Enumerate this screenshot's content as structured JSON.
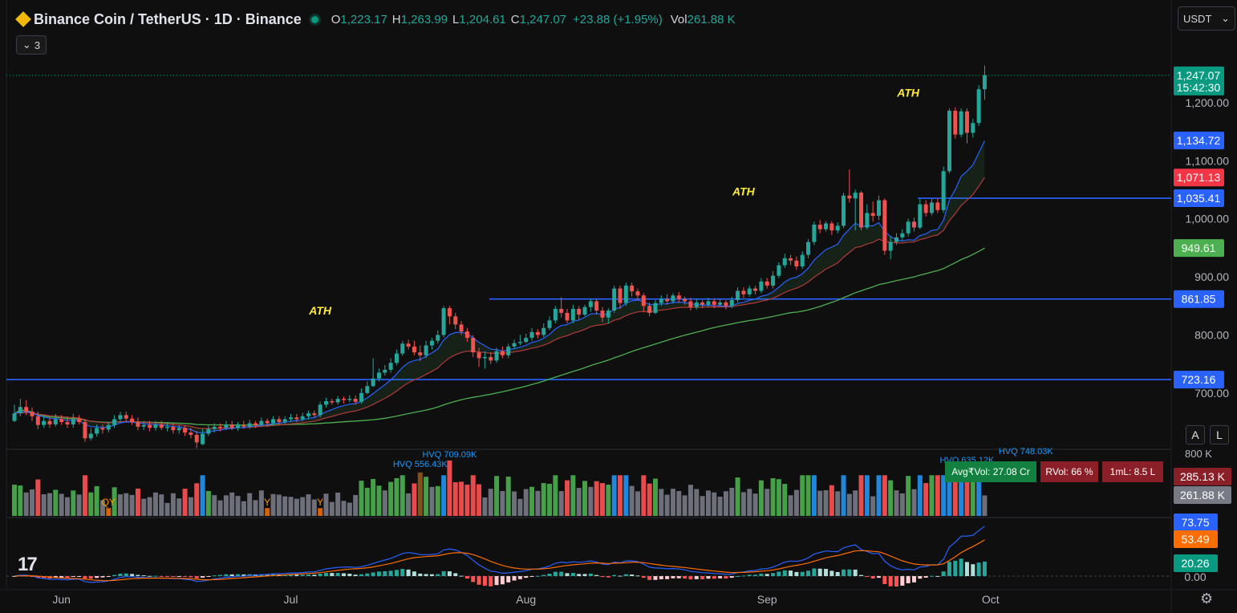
{
  "header": {
    "symbol": "Binance Coin / TetherUS · 1D · Binance",
    "o_label": "O",
    "o_value": "1,223.17",
    "h_label": "H",
    "h_value": "1,263.99",
    "l_label": "L",
    "l_value": "1,204.61",
    "c_label": "C",
    "c_value": "1,247.07",
    "change": "+23.88 (+1.95%)",
    "vol_label": "Vol",
    "vol_value": "261.88 K",
    "indicators_count": "3"
  },
  "currency": "USDT",
  "scale_buttons": {
    "auto": "A",
    "log": "L"
  },
  "colors": {
    "up": "#26a69a",
    "down": "#ef5350",
    "ema_fast": "#2962ff",
    "ema_slow": "#b23a3a",
    "ma": "#4caf50",
    "hline": "#2962ff",
    "vol_up": "#4caf50",
    "vol_down": "#ff5252",
    "vol_blue": "#2196f3",
    "vol_grey": "#787b86",
    "vol_hvq": "#8d5a1c",
    "macd": "#2962ff",
    "signal": "#ff6d00"
  },
  "chart_data": {
    "type": "candlestick",
    "interval": "1D",
    "ylim": [
      610,
      1280
    ],
    "y_ticks": [
      "1,200.00",
      "1,100.00",
      "1,000.00",
      "900.00",
      "800.00",
      "700.00"
    ],
    "x_ticks": [
      "Jun",
      "Jul",
      "Aug",
      "Sep",
      "Oct"
    ],
    "candles": [
      {
        "o": 652,
        "c": 665,
        "h": 680,
        "l": 650
      },
      {
        "o": 665,
        "c": 676,
        "h": 690,
        "l": 660
      },
      {
        "o": 676,
        "c": 668,
        "h": 688,
        "l": 662
      },
      {
        "o": 668,
        "c": 660,
        "h": 675,
        "l": 652
      },
      {
        "o": 660,
        "c": 645,
        "h": 668,
        "l": 638
      },
      {
        "o": 645,
        "c": 652,
        "h": 660,
        "l": 640
      },
      {
        "o": 652,
        "c": 646,
        "h": 658,
        "l": 640
      },
      {
        "o": 646,
        "c": 655,
        "h": 664,
        "l": 642
      },
      {
        "o": 655,
        "c": 650,
        "h": 662,
        "l": 645
      },
      {
        "o": 650,
        "c": 646,
        "h": 660,
        "l": 640
      },
      {
        "o": 646,
        "c": 655,
        "h": 664,
        "l": 640
      },
      {
        "o": 655,
        "c": 650,
        "h": 662,
        "l": 646
      },
      {
        "o": 650,
        "c": 622,
        "h": 656,
        "l": 616
      },
      {
        "o": 622,
        "c": 630,
        "h": 640,
        "l": 618
      },
      {
        "o": 630,
        "c": 640,
        "h": 646,
        "l": 625
      },
      {
        "o": 640,
        "c": 637,
        "h": 646,
        "l": 630
      },
      {
        "o": 637,
        "c": 645,
        "h": 650,
        "l": 632
      },
      {
        "o": 645,
        "c": 655,
        "h": 662,
        "l": 640
      },
      {
        "o": 655,
        "c": 662,
        "h": 668,
        "l": 650
      },
      {
        "o": 662,
        "c": 656,
        "h": 668,
        "l": 650
      },
      {
        "o": 656,
        "c": 650,
        "h": 662,
        "l": 645
      },
      {
        "o": 650,
        "c": 642,
        "h": 658,
        "l": 636
      },
      {
        "o": 642,
        "c": 645,
        "h": 652,
        "l": 636
      },
      {
        "o": 645,
        "c": 640,
        "h": 652,
        "l": 634
      },
      {
        "o": 640,
        "c": 646,
        "h": 652,
        "l": 635
      },
      {
        "o": 646,
        "c": 640,
        "h": 652,
        "l": 636
      },
      {
        "o": 640,
        "c": 642,
        "h": 648,
        "l": 634
      },
      {
        "o": 642,
        "c": 636,
        "h": 648,
        "l": 630
      },
      {
        "o": 636,
        "c": 640,
        "h": 646,
        "l": 630
      },
      {
        "o": 640,
        "c": 632,
        "h": 644,
        "l": 626
      },
      {
        "o": 632,
        "c": 628,
        "h": 640,
        "l": 622
      },
      {
        "o": 628,
        "c": 615,
        "h": 635,
        "l": 605
      },
      {
        "o": 612,
        "c": 630,
        "h": 638,
        "l": 610
      },
      {
        "o": 630,
        "c": 638,
        "h": 644,
        "l": 626
      },
      {
        "o": 638,
        "c": 642,
        "h": 648,
        "l": 632
      },
      {
        "o": 642,
        "c": 640,
        "h": 648,
        "l": 634
      },
      {
        "o": 640,
        "c": 646,
        "h": 652,
        "l": 636
      },
      {
        "o": 646,
        "c": 640,
        "h": 652,
        "l": 636
      },
      {
        "o": 640,
        "c": 645,
        "h": 650,
        "l": 635
      },
      {
        "o": 645,
        "c": 642,
        "h": 652,
        "l": 638
      },
      {
        "o": 642,
        "c": 648,
        "h": 654,
        "l": 638
      },
      {
        "o": 648,
        "c": 645,
        "h": 652,
        "l": 640
      },
      {
        "o": 645,
        "c": 652,
        "h": 658,
        "l": 642
      },
      {
        "o": 652,
        "c": 648,
        "h": 656,
        "l": 642
      },
      {
        "o": 648,
        "c": 655,
        "h": 660,
        "l": 644
      },
      {
        "o": 655,
        "c": 650,
        "h": 660,
        "l": 646
      },
      {
        "o": 650,
        "c": 655,
        "h": 660,
        "l": 646
      },
      {
        "o": 655,
        "c": 658,
        "h": 664,
        "l": 650
      },
      {
        "o": 658,
        "c": 655,
        "h": 664,
        "l": 650
      },
      {
        "o": 655,
        "c": 660,
        "h": 666,
        "l": 652
      },
      {
        "o": 660,
        "c": 665,
        "h": 670,
        "l": 655
      },
      {
        "o": 665,
        "c": 662,
        "h": 670,
        "l": 658
      },
      {
        "o": 662,
        "c": 680,
        "h": 685,
        "l": 658
      },
      {
        "o": 680,
        "c": 686,
        "h": 692,
        "l": 675
      },
      {
        "o": 686,
        "c": 684,
        "h": 690,
        "l": 680
      },
      {
        "o": 684,
        "c": 690,
        "h": 695,
        "l": 680
      },
      {
        "o": 690,
        "c": 688,
        "h": 694,
        "l": 682
      },
      {
        "o": 688,
        "c": 690,
        "h": 696,
        "l": 684
      },
      {
        "o": 690,
        "c": 685,
        "h": 696,
        "l": 680
      },
      {
        "o": 685,
        "c": 700,
        "h": 708,
        "l": 682
      },
      {
        "o": 700,
        "c": 712,
        "h": 720,
        "l": 698
      },
      {
        "o": 712,
        "c": 725,
        "h": 760,
        "l": 710
      },
      {
        "o": 725,
        "c": 735,
        "h": 742,
        "l": 720
      },
      {
        "o": 735,
        "c": 740,
        "h": 748,
        "l": 730
      },
      {
        "o": 740,
        "c": 752,
        "h": 760,
        "l": 735
      },
      {
        "o": 752,
        "c": 768,
        "h": 775,
        "l": 748
      },
      {
        "o": 768,
        "c": 785,
        "h": 790,
        "l": 764
      },
      {
        "o": 785,
        "c": 780,
        "h": 792,
        "l": 775
      },
      {
        "o": 780,
        "c": 770,
        "h": 790,
        "l": 765
      },
      {
        "o": 770,
        "c": 765,
        "h": 782,
        "l": 755
      },
      {
        "o": 765,
        "c": 782,
        "h": 790,
        "l": 760
      },
      {
        "o": 782,
        "c": 790,
        "h": 795,
        "l": 775
      },
      {
        "o": 790,
        "c": 800,
        "h": 808,
        "l": 785
      },
      {
        "o": 800,
        "c": 846,
        "h": 850,
        "l": 796
      },
      {
        "o": 846,
        "c": 832,
        "h": 850,
        "l": 818
      },
      {
        "o": 832,
        "c": 818,
        "h": 838,
        "l": 810
      },
      {
        "o": 818,
        "c": 806,
        "h": 824,
        "l": 800
      },
      {
        "o": 806,
        "c": 795,
        "h": 812,
        "l": 788
      },
      {
        "o": 795,
        "c": 770,
        "h": 800,
        "l": 762
      },
      {
        "o": 770,
        "c": 760,
        "h": 778,
        "l": 745
      },
      {
        "o": 760,
        "c": 762,
        "h": 772,
        "l": 742
      },
      {
        "o": 762,
        "c": 756,
        "h": 770,
        "l": 750
      },
      {
        "o": 756,
        "c": 772,
        "h": 778,
        "l": 752
      },
      {
        "o": 772,
        "c": 765,
        "h": 780,
        "l": 760
      },
      {
        "o": 765,
        "c": 780,
        "h": 785,
        "l": 760
      },
      {
        "o": 780,
        "c": 786,
        "h": 792,
        "l": 776
      },
      {
        "o": 786,
        "c": 788,
        "h": 800,
        "l": 782
      },
      {
        "o": 788,
        "c": 795,
        "h": 802,
        "l": 786
      },
      {
        "o": 795,
        "c": 805,
        "h": 812,
        "l": 790
      },
      {
        "o": 805,
        "c": 800,
        "h": 810,
        "l": 794
      },
      {
        "o": 800,
        "c": 812,
        "h": 820,
        "l": 796
      },
      {
        "o": 812,
        "c": 825,
        "h": 832,
        "l": 808
      },
      {
        "o": 825,
        "c": 845,
        "h": 850,
        "l": 820
      },
      {
        "o": 845,
        "c": 838,
        "h": 865,
        "l": 830
      },
      {
        "o": 838,
        "c": 825,
        "h": 845,
        "l": 820
      },
      {
        "o": 825,
        "c": 845,
        "h": 852,
        "l": 820
      },
      {
        "o": 845,
        "c": 835,
        "h": 850,
        "l": 826
      },
      {
        "o": 835,
        "c": 848,
        "h": 852,
        "l": 832
      },
      {
        "o": 848,
        "c": 858,
        "h": 862,
        "l": 840
      },
      {
        "o": 858,
        "c": 842,
        "h": 862,
        "l": 835
      },
      {
        "o": 842,
        "c": 830,
        "h": 848,
        "l": 822
      },
      {
        "o": 830,
        "c": 842,
        "h": 846,
        "l": 820
      },
      {
        "o": 842,
        "c": 880,
        "h": 885,
        "l": 838
      },
      {
        "o": 880,
        "c": 855,
        "h": 885,
        "l": 845
      },
      {
        "o": 855,
        "c": 885,
        "h": 890,
        "l": 850
      },
      {
        "o": 885,
        "c": 875,
        "h": 890,
        "l": 866
      },
      {
        "o": 875,
        "c": 868,
        "h": 880,
        "l": 860
      },
      {
        "o": 868,
        "c": 850,
        "h": 872,
        "l": 840
      },
      {
        "o": 850,
        "c": 838,
        "h": 856,
        "l": 832
      },
      {
        "o": 838,
        "c": 855,
        "h": 860,
        "l": 836
      },
      {
        "o": 855,
        "c": 862,
        "h": 868,
        "l": 850
      },
      {
        "o": 862,
        "c": 858,
        "h": 870,
        "l": 852
      },
      {
        "o": 858,
        "c": 868,
        "h": 872,
        "l": 854
      },
      {
        "o": 868,
        "c": 862,
        "h": 874,
        "l": 856
      },
      {
        "o": 862,
        "c": 858,
        "h": 866,
        "l": 852
      },
      {
        "o": 858,
        "c": 848,
        "h": 864,
        "l": 842
      },
      {
        "o": 848,
        "c": 856,
        "h": 862,
        "l": 844
      },
      {
        "o": 856,
        "c": 852,
        "h": 860,
        "l": 846
      },
      {
        "o": 852,
        "c": 858,
        "h": 864,
        "l": 848
      },
      {
        "o": 858,
        "c": 852,
        "h": 862,
        "l": 846
      },
      {
        "o": 852,
        "c": 856,
        "h": 862,
        "l": 848
      },
      {
        "o": 856,
        "c": 850,
        "h": 860,
        "l": 844
      },
      {
        "o": 850,
        "c": 860,
        "h": 866,
        "l": 846
      },
      {
        "o": 860,
        "c": 876,
        "h": 882,
        "l": 856
      },
      {
        "o": 876,
        "c": 870,
        "h": 882,
        "l": 864
      },
      {
        "o": 870,
        "c": 880,
        "h": 885,
        "l": 866
      },
      {
        "o": 880,
        "c": 876,
        "h": 885,
        "l": 870
      },
      {
        "o": 876,
        "c": 892,
        "h": 898,
        "l": 872
      },
      {
        "o": 892,
        "c": 885,
        "h": 898,
        "l": 880
      },
      {
        "o": 885,
        "c": 902,
        "h": 910,
        "l": 880
      },
      {
        "o": 902,
        "c": 920,
        "h": 925,
        "l": 898
      },
      {
        "o": 920,
        "c": 932,
        "h": 940,
        "l": 915
      },
      {
        "o": 932,
        "c": 928,
        "h": 938,
        "l": 920
      },
      {
        "o": 928,
        "c": 918,
        "h": 935,
        "l": 912
      },
      {
        "o": 918,
        "c": 938,
        "h": 944,
        "l": 914
      },
      {
        "o": 938,
        "c": 960,
        "h": 965,
        "l": 932
      },
      {
        "o": 960,
        "c": 990,
        "h": 995,
        "l": 955
      },
      {
        "o": 990,
        "c": 982,
        "h": 998,
        "l": 975
      },
      {
        "o": 982,
        "c": 992,
        "h": 996,
        "l": 978
      },
      {
        "o": 992,
        "c": 980,
        "h": 996,
        "l": 972
      },
      {
        "o": 980,
        "c": 988,
        "h": 994,
        "l": 975
      },
      {
        "o": 988,
        "c": 1040,
        "h": 1045,
        "l": 984
      },
      {
        "o": 1040,
        "c": 1035,
        "h": 1085,
        "l": 1028
      },
      {
        "o": 1035,
        "c": 1045,
        "h": 1050,
        "l": 980
      },
      {
        "o": 1045,
        "c": 985,
        "h": 1048,
        "l": 980
      },
      {
        "o": 985,
        "c": 1010,
        "h": 1025,
        "l": 982
      },
      {
        "o": 1010,
        "c": 1005,
        "h": 1030,
        "l": 995
      },
      {
        "o": 1005,
        "c": 1032,
        "h": 1040,
        "l": 998
      },
      {
        "o": 1032,
        "c": 945,
        "h": 1035,
        "l": 938
      },
      {
        "o": 945,
        "c": 960,
        "h": 970,
        "l": 930
      },
      {
        "o": 960,
        "c": 968,
        "h": 975,
        "l": 955
      },
      {
        "o": 968,
        "c": 975,
        "h": 982,
        "l": 962
      },
      {
        "o": 975,
        "c": 995,
        "h": 1000,
        "l": 970
      },
      {
        "o": 995,
        "c": 985,
        "h": 1002,
        "l": 978
      },
      {
        "o": 985,
        "c": 1025,
        "h": 1035,
        "l": 982
      },
      {
        "o": 1025,
        "c": 1010,
        "h": 1032,
        "l": 1004
      },
      {
        "o": 1010,
        "c": 1028,
        "h": 1035,
        "l": 1006
      },
      {
        "o": 1028,
        "c": 1015,
        "h": 1035,
        "l": 1010
      },
      {
        "o": 1015,
        "c": 1082,
        "h": 1090,
        "l": 1010
      },
      {
        "o": 1082,
        "c": 1186,
        "h": 1190,
        "l": 1078
      },
      {
        "o": 1186,
        "c": 1145,
        "h": 1192,
        "l": 1138
      },
      {
        "o": 1145,
        "c": 1185,
        "h": 1190,
        "l": 1140
      },
      {
        "o": 1185,
        "c": 1148,
        "h": 1190,
        "l": 1130
      },
      {
        "o": 1148,
        "c": 1165,
        "h": 1172,
        "l": 1140
      },
      {
        "o": 1165,
        "c": 1223,
        "h": 1230,
        "l": 1160
      },
      {
        "o": 1223.17,
        "c": 1247.07,
        "h": 1263.99,
        "l": 1204.61
      }
    ],
    "ema_fast_last": 1134.72,
    "ema_slow_last": 1071.13,
    "ma_last": 949.61,
    "horizontal_lines": [
      1035.41,
      861.85,
      723.16
    ],
    "annotations": [
      {
        "text": "ATH",
        "index": 52,
        "price": 835
      },
      {
        "text": "ATH",
        "index": 124,
        "price": 1040
      },
      {
        "text": "ATH",
        "index": 152,
        "price": 1210
      }
    ],
    "price_labels": [
      {
        "value": "1,247.07",
        "sub": "15:42:30",
        "color": "#089981",
        "price": 1247.07
      },
      {
        "value": "1,134.72",
        "color": "#2962ff",
        "price": 1134.72
      },
      {
        "value": "1,071.13",
        "color": "#f23645",
        "price": 1071.13
      },
      {
        "value": "1,035.41",
        "color": "#2962ff",
        "price": 1035.41
      },
      {
        "value": "949.61",
        "color": "#4caf50",
        "price": 949.61
      },
      {
        "value": "861.85",
        "color": "#2962ff",
        "price": 861.85
      },
      {
        "value": "723.16",
        "color": "#2962ff",
        "price": 723.16
      }
    ],
    "volume": {
      "ylim": [
        0,
        800
      ],
      "tick": "800 K",
      "label_total": "285.13 K",
      "label_current": "261.88 K",
      "hvq": [
        {
          "text": "HVQ 556.43K",
          "index": 69
        },
        {
          "text": "HVQ 709.09K",
          "index": 74
        },
        {
          "text": "HVQ 635.12K",
          "index": 162
        },
        {
          "text": "HVQ 748.03K",
          "index": 172
        }
      ],
      "markers": [
        {
          "text": "QY",
          "index": 16
        },
        {
          "text": "Y",
          "index": 43
        },
        {
          "text": "Y",
          "index": 52
        }
      ],
      "stats": {
        "avgvol": "Avg₹Vol: 27.08 Cr",
        "rvol": "RVol: 66 %",
        "ml": "1mL: 8.5 L"
      }
    },
    "macd": {
      "labels": [
        {
          "value": "73.75",
          "color": "#2962ff"
        },
        {
          "value": "53.49",
          "color": "#ff6d00"
        },
        {
          "value": "20.26",
          "color": "#089981"
        },
        {
          "value": "0.00",
          "color": "none"
        }
      ]
    }
  }
}
